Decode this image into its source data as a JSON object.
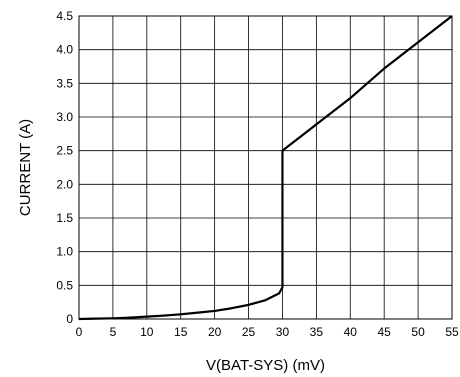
{
  "chart_data": {
    "type": "line",
    "title": "",
    "xlabel": "V(BAT-SYS) (mV)",
    "ylabel": "CURRENT (A)",
    "xlim": [
      0,
      55
    ],
    "ylim": [
      0,
      4.5
    ],
    "grid": true,
    "x_ticks": [
      "0",
      "5",
      "10",
      "15",
      "20",
      "25",
      "30",
      "35",
      "40",
      "45",
      "50",
      "55"
    ],
    "y_ticks": [
      "0",
      "0.5",
      "1.0",
      "1.5",
      "2.0",
      "2.5",
      "3.0",
      "3.5",
      "4.0",
      "4.5"
    ],
    "series": [
      {
        "x": [
          0,
          2.5,
          5,
          7.5,
          10,
          12.5,
          15,
          17.5,
          20,
          22.5,
          25,
          27.5,
          29.5,
          30,
          30,
          35,
          40,
          45,
          50,
          55
        ],
        "y": [
          0,
          0.005,
          0.01,
          0.02,
          0.035,
          0.05,
          0.07,
          0.095,
          0.12,
          0.16,
          0.21,
          0.28,
          0.38,
          0.47,
          2.5,
          2.89,
          3.28,
          3.72,
          4.11,
          4.5
        ]
      }
    ]
  }
}
